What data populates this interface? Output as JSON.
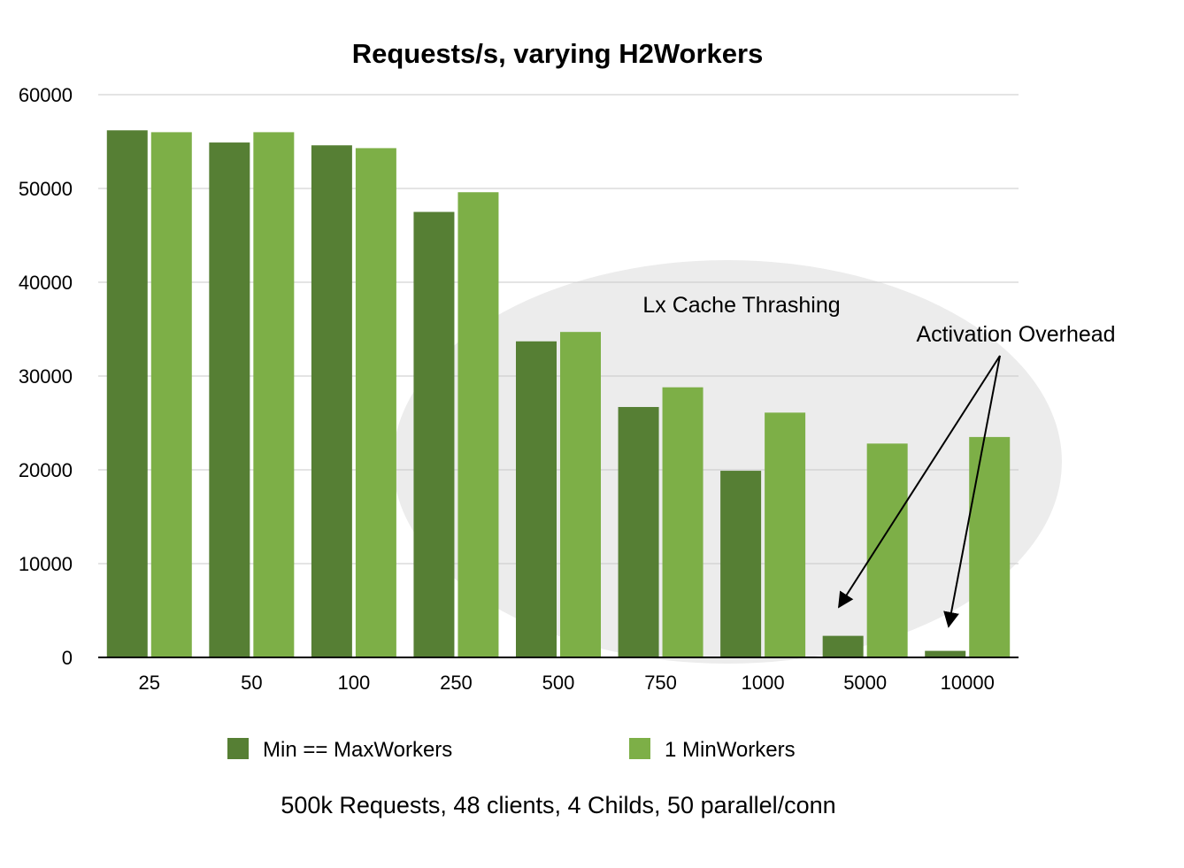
{
  "chart_data": {
    "type": "bar",
    "title": "Requests/s, varying H2Workers",
    "subtitle": "500k Requests, 48 clients, 4 Childs, 50 parallel/conn",
    "xlabel": "",
    "ylabel": "",
    "categories": [
      "25",
      "50",
      "100",
      "250",
      "500",
      "750",
      "1000",
      "5000",
      "10000"
    ],
    "ylim": [
      0,
      60000
    ],
    "yticks": [
      0,
      10000,
      20000,
      30000,
      40000,
      50000,
      60000
    ],
    "grid": true,
    "legend_position": "bottom",
    "series": [
      {
        "name": "Min == MaxWorkers",
        "color": "#567f34",
        "values": [
          56200,
          54900,
          54600,
          47500,
          33700,
          26700,
          19900,
          2300,
          700
        ]
      },
      {
        "name": "1 MinWorkers",
        "color": "#7daf47",
        "values": [
          56000,
          56000,
          54300,
          49600,
          34700,
          28800,
          26100,
          22800,
          23500
        ]
      }
    ],
    "annotations": [
      {
        "text": "Lx Cache Thrashing"
      },
      {
        "text": "Activation Overhead"
      }
    ]
  }
}
